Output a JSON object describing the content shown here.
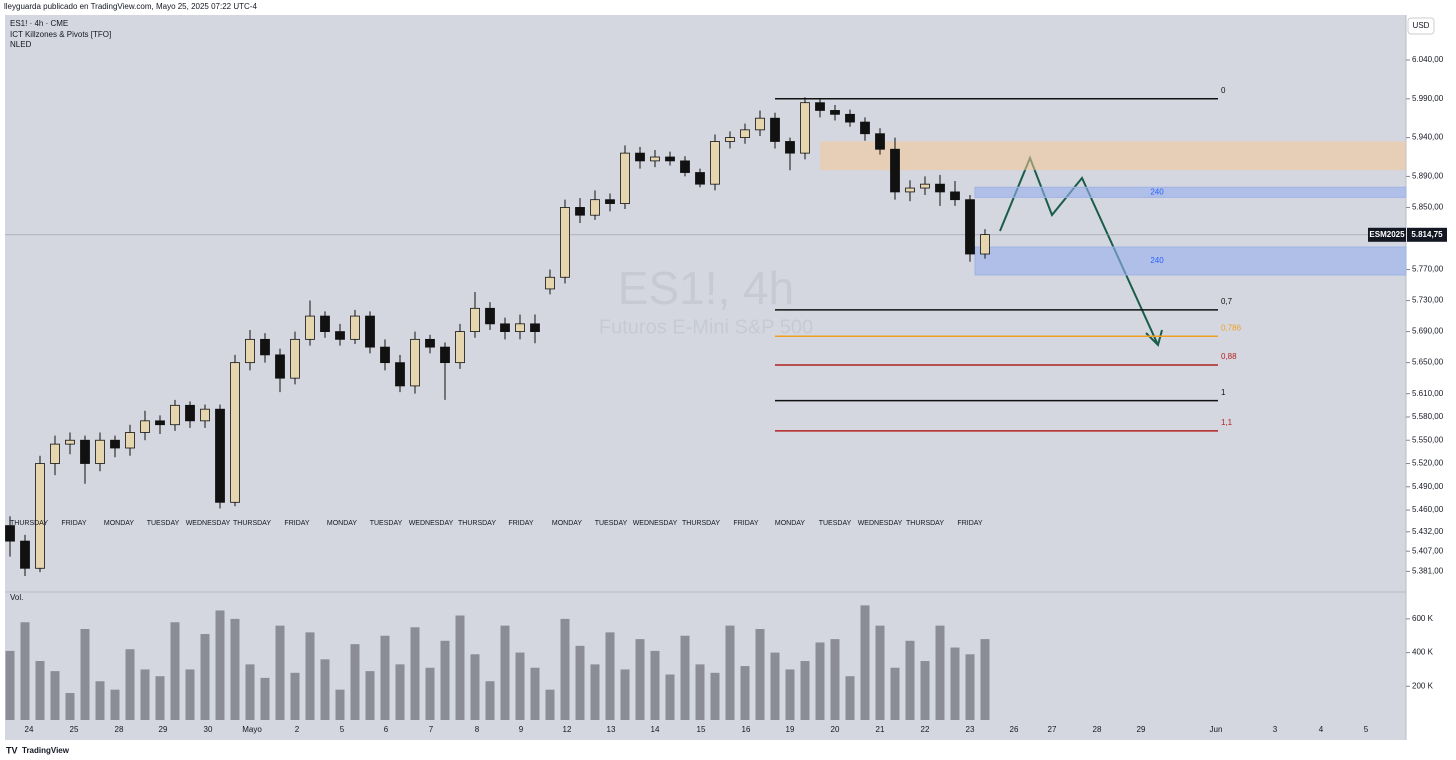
{
  "header": {
    "text": "lleyguarda publicado en TradingView.com, Mayo 25, 2025 07:22 UTC-4",
    "footer": "TradingView"
  },
  "chart_data": {
    "type": "candlestick",
    "title": "ES1!, 4h",
    "subtitle": "Futuros E-Mini S&P 500",
    "legend": [
      "ES1! · 4h · CME",
      "ICT Killzones & Pivots [TFO]",
      "NLED"
    ],
    "currency": "USD",
    "open": [
      5440,
      5420,
      5385,
      5520,
      5545,
      5550,
      5520,
      5550,
      5540,
      5560,
      5575,
      5570,
      5595,
      5575,
      5590,
      5470,
      5650,
      5680,
      5660,
      5630,
      5680,
      5710,
      5690,
      5680,
      5710,
      5670,
      5650,
      5620,
      5680,
      5670,
      5650,
      5690,
      5720,
      5700,
      5690,
      5700,
      5745,
      5760,
      5850,
      5840,
      5860,
      5855,
      5920,
      5910,
      5915,
      5910,
      5895,
      5880,
      5935,
      5940,
      5950,
      5965,
      5935,
      5920,
      5985,
      5975,
      5970,
      5960,
      5945,
      5925,
      5870,
      5875,
      5880,
      5870,
      5860,
      5790
    ],
    "high": [
      5452,
      5428,
      5530,
      5556,
      5560,
      5556,
      5560,
      5556,
      5570,
      5588,
      5582,
      5602,
      5600,
      5596,
      5596,
      5660,
      5692,
      5688,
      5668,
      5690,
      5730,
      5716,
      5700,
      5718,
      5716,
      5680,
      5660,
      5690,
      5686,
      5676,
      5700,
      5741,
      5728,
      5708,
      5712,
      5712,
      5770,
      5860,
      5862,
      5872,
      5868,
      5930,
      5928,
      5924,
      5922,
      5916,
      5900,
      5944,
      5948,
      5958,
      5975,
      5972,
      5940,
      5992,
      5990,
      5982,
      5976,
      5966,
      5952,
      5940,
      5885,
      5890,
      5892,
      5884,
      5866,
      5822
    ],
    "low": [
      5400,
      5375,
      5380,
      5505,
      5532,
      5494,
      5510,
      5528,
      5530,
      5550,
      5558,
      5562,
      5566,
      5566,
      5462,
      5465,
      5640,
      5650,
      5612,
      5622,
      5672,
      5682,
      5672,
      5674,
      5662,
      5640,
      5612,
      5610,
      5662,
      5602,
      5642,
      5682,
      5692,
      5680,
      5680,
      5675,
      5738,
      5752,
      5830,
      5834,
      5845,
      5848,
      5900,
      5902,
      5904,
      5890,
      5876,
      5872,
      5926,
      5932,
      5942,
      5926,
      5898,
      5912,
      5966,
      5962,
      5954,
      5936,
      5918,
      5860,
      5858,
      5866,
      5852,
      5852,
      5780,
      5784
    ],
    "close": [
      5420,
      5385,
      5520,
      5545,
      5550,
      5520,
      5550,
      5540,
      5560,
      5575,
      5570,
      5595,
      5575,
      5590,
      5470,
      5650,
      5680,
      5660,
      5630,
      5680,
      5710,
      5690,
      5680,
      5710,
      5670,
      5650,
      5620,
      5680,
      5670,
      5650,
      5690,
      5720,
      5700,
      5690,
      5700,
      5690,
      5760,
      5850,
      5840,
      5860,
      5855,
      5920,
      5910,
      5915,
      5910,
      5895,
      5880,
      5935,
      5940,
      5950,
      5965,
      5935,
      5920,
      5985,
      5975,
      5970,
      5960,
      5945,
      5925,
      5870,
      5875,
      5880,
      5870,
      5860,
      5790,
      5815
    ],
    "up_color": "#e6d6b0",
    "down_color": "#111111",
    "ylim": [
      5357,
      6098
    ],
    "yticks": [
      {
        "value": 6040,
        "label": "6.040,00"
      },
      {
        "value": 5990,
        "label": "5.990,00"
      },
      {
        "value": 5940,
        "label": "5.940,00"
      },
      {
        "value": 5890,
        "label": "5.890,00"
      },
      {
        "value": 5850,
        "label": "5.850,00"
      },
      {
        "value": 5770,
        "label": "5.770,00"
      },
      {
        "value": 5730,
        "label": "5.730,00"
      },
      {
        "value": 5690,
        "label": "5.690,00"
      },
      {
        "value": 5650,
        "label": "5.650,00"
      },
      {
        "value": 5610,
        "label": "5.610,00"
      },
      {
        "value": 5580,
        "label": "5.580,00"
      },
      {
        "value": 5550,
        "label": "5.550,00"
      },
      {
        "value": 5520,
        "label": "5.520,00"
      },
      {
        "value": 5490,
        "label": "5.490,00"
      },
      {
        "value": 5460,
        "label": "5.460,00"
      },
      {
        "value": 5432,
        "label": "5.432,00"
      },
      {
        "value": 5407,
        "label": "5.407,00"
      },
      {
        "value": 5381,
        "label": "5.381,00"
      }
    ],
    "last_price": {
      "symbol": "ESM2025",
      "value": 5814.75,
      "label": "5.814,75"
    },
    "levels": [
      {
        "label": "0",
        "value": 5990,
        "color": "#111111"
      },
      {
        "label": "0,7",
        "value": 5718,
        "color": "#111111"
      },
      {
        "label": "0,786",
        "value": 5684,
        "color": "#f0a020"
      },
      {
        "label": "0,88",
        "value": 5647,
        "color": "#b22222"
      },
      {
        "label": "1",
        "value": 5601,
        "color": "#111111"
      },
      {
        "label": "1,1",
        "value": 5562,
        "color": "#b22222"
      }
    ],
    "zones": [
      {
        "top": 5935,
        "bottom": 5898,
        "color": "rgba(245,200,150,0.55)"
      },
      {
        "label": "240",
        "top": 5876,
        "bottom": 5863,
        "color": "rgba(150,175,235,0.6)"
      },
      {
        "label": "240",
        "top": 5799,
        "bottom": 5763,
        "color": "rgba(150,175,235,0.6)"
      }
    ],
    "x_labels": [
      "24",
      "25",
      "28",
      "29",
      "30",
      "Mayo",
      "2",
      "5",
      "6",
      "7",
      "8",
      "9",
      "12",
      "13",
      "14",
      "15",
      "16",
      "19",
      "20",
      "21",
      "22",
      "23",
      "26",
      "27",
      "28",
      "29",
      "Jun",
      "3",
      "4",
      "5"
    ],
    "weekday_labels": [
      "THURSDAY",
      "FRIDAY",
      "MONDAY",
      "TUESDAY",
      "WEDNESDAY",
      "THURSDAY",
      "FRIDAY",
      "MONDAY",
      "TUESDAY",
      "WEDNESDAY",
      "THURSDAY",
      "FRIDAY",
      "MONDAY",
      "TUESDAY",
      "WEDNESDAY",
      "THURSDAY",
      "FRIDAY",
      "MONDAY",
      "TUESDAY",
      "WEDNESDAY",
      "THURSDAY",
      "FRIDAY"
    ],
    "volume": {
      "label": "Vol.",
      "color": "#8c8c96",
      "values": [
        410000,
        580000,
        350000,
        290000,
        160000,
        540000,
        230000,
        180000,
        420000,
        300000,
        260000,
        580000,
        300000,
        510000,
        650000,
        600000,
        330000,
        250000,
        560000,
        280000,
        520000,
        360000,
        180000,
        450000,
        290000,
        500000,
        330000,
        550000,
        310000,
        470000,
        620000,
        390000,
        230000,
        560000,
        400000,
        310000,
        180000,
        600000,
        440000,
        330000,
        520000,
        300000,
        480000,
        410000,
        270000,
        500000,
        330000,
        280000,
        560000,
        320000,
        540000,
        400000,
        300000,
        350000,
        460000,
        480000,
        260000,
        680000,
        560000,
        310000,
        470000,
        350000,
        560000,
        430000,
        390000,
        480000
      ],
      "ylim": [
        0,
        712000
      ],
      "yticks": [
        {
          "value": 600000,
          "label": "600 K"
        },
        {
          "value": 400000,
          "label": "400 K"
        },
        {
          "value": 200000,
          "label": "200 K"
        }
      ]
    }
  }
}
